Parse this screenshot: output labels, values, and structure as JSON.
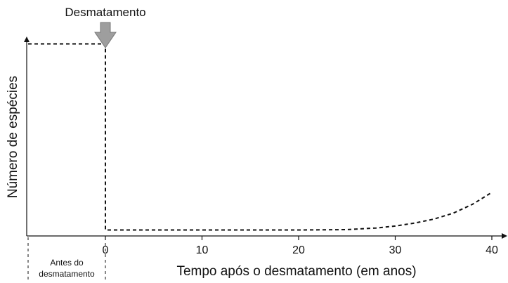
{
  "chart_data": {
    "type": "line",
    "title": "",
    "xlabel": "Tempo após o desmatamento (em anos)",
    "ylabel": "Número de espécies",
    "xlim": [
      -8,
      42
    ],
    "ylim": [
      0,
      100
    ],
    "x_ticks": [
      0,
      10,
      20,
      30,
      40
    ],
    "x_tick_labels": [
      "0",
      "10",
      "20",
      "30",
      "40"
    ],
    "grid": false,
    "line_style": "dashed",
    "line_color": "#111111",
    "series": [
      {
        "points": [
          [
            -8,
            97
          ],
          [
            0,
            97
          ],
          [
            0,
            95
          ],
          [
            0,
            3
          ],
          [
            5,
            3
          ],
          [
            10,
            3
          ],
          [
            15,
            3
          ],
          [
            20,
            3
          ],
          [
            25,
            3.2
          ],
          [
            28,
            4
          ],
          [
            30,
            5
          ],
          [
            32,
            6.5
          ],
          [
            34,
            8.5
          ],
          [
            36,
            11.5
          ],
          [
            38,
            16
          ],
          [
            40,
            22
          ]
        ]
      }
    ],
    "annotations": {
      "event_label": "Desmatamento",
      "event_x": 0,
      "event_arrow_color": "#9e9e9e",
      "pre_period_label_line1": "Antes do",
      "pre_period_label_line2": "desmatamento"
    }
  }
}
